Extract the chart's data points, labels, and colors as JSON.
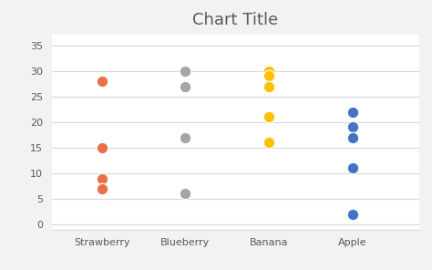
{
  "title": "Chart Title",
  "categories": [
    "Strawberry",
    "Blueberry",
    "Banana",
    "Apple"
  ],
  "series": {
    "Strawberry": {
      "values": [
        28,
        15,
        9,
        7
      ],
      "color": "#E8714A",
      "x_pos": 1
    },
    "Blueberry": {
      "values": [
        30,
        27,
        17,
        6
      ],
      "color": "#A5A5A5",
      "x_pos": 2
    },
    "Banana": {
      "values": [
        30,
        29,
        27,
        21,
        16
      ],
      "color": "#FFC000",
      "x_pos": 3
    },
    "Apple": {
      "values": [
        22,
        19,
        17,
        11,
        2
      ],
      "color": "#4472C4",
      "x_pos": 4
    }
  },
  "ylim": [
    -1,
    37
  ],
  "yticks": [
    0,
    5,
    10,
    15,
    20,
    25,
    30,
    35
  ],
  "xlim": [
    0.4,
    4.8
  ],
  "marker_size": 80,
  "title_fontsize": 13,
  "title_color": "#595959",
  "background_color": "#ffffff",
  "outer_background": "#f2f2f2",
  "grid_color": "#d9d9d9",
  "tick_label_fontsize": 8,
  "tick_label_color": "#595959"
}
